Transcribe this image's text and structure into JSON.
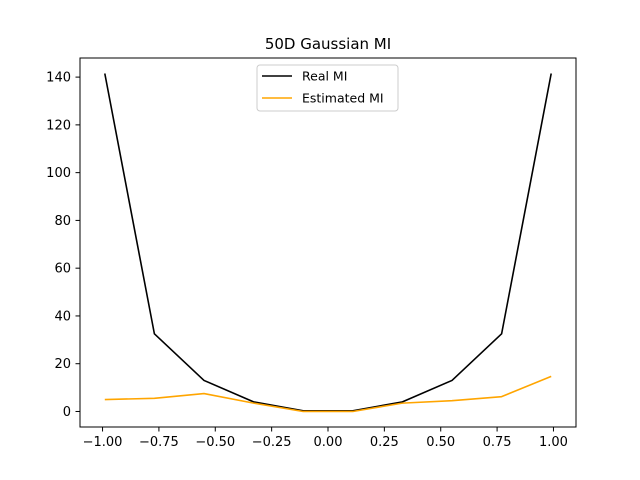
{
  "chart_data": {
    "type": "line",
    "title": "50D Gaussian MI",
    "xlabel": "",
    "ylabel": "",
    "xlim": [
      -1.1,
      1.1
    ],
    "ylim": [
      -6.5,
      148
    ],
    "grid": false,
    "legend_position": "top-center",
    "x_ticks": [
      -1.0,
      -0.75,
      -0.5,
      -0.25,
      0.0,
      0.25,
      0.5,
      0.75,
      1.0
    ],
    "x_tick_labels": [
      "−1.00",
      "−0.75",
      "−0.50",
      "−0.25",
      "0.00",
      "0.25",
      "0.50",
      "0.75",
      "1.00"
    ],
    "y_ticks": [
      0,
      20,
      40,
      60,
      80,
      100,
      120,
      140
    ],
    "y_tick_labels": [
      "0",
      "20",
      "40",
      "60",
      "80",
      "100",
      "120",
      "140"
    ],
    "x": [
      -0.99,
      -0.77,
      -0.55,
      -0.33,
      -0.11,
      0.11,
      0.33,
      0.55,
      0.77,
      0.99
    ],
    "series": [
      {
        "name": "Real MI",
        "color": "#000000",
        "values": [
          141.5,
          32.5,
          13.0,
          4.0,
          0.3,
          0.3,
          4.0,
          13.0,
          32.5,
          141.5
        ]
      },
      {
        "name": "Estimated MI",
        "color": "#ffa500",
        "values": [
          5.0,
          5.5,
          7.5,
          3.5,
          0.0,
          0.0,
          3.5,
          4.5,
          6.2,
          14.7
        ]
      }
    ]
  }
}
